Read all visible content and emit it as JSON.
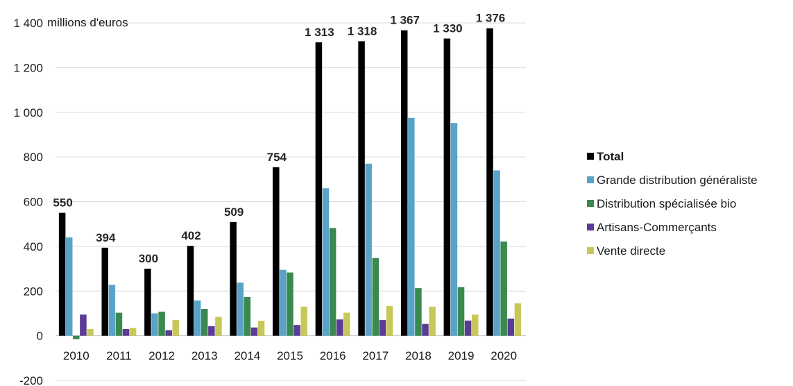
{
  "chart_data": {
    "type": "bar",
    "unit_label": "millions d'euros",
    "categories": [
      "2010",
      "2011",
      "2012",
      "2013",
      "2014",
      "2015",
      "2016",
      "2017",
      "2018",
      "2019",
      "2020"
    ],
    "series": [
      {
        "name": "Total",
        "color": "#000000",
        "values": [
          550,
          394,
          300,
          402,
          509,
          754,
          1313,
          1318,
          1367,
          1330,
          1376
        ]
      },
      {
        "name": "Grande distribution généraliste",
        "color": "#5aa3c8",
        "values": [
          440,
          228,
          100,
          158,
          238,
          295,
          660,
          770,
          975,
          952,
          740
        ]
      },
      {
        "name": "Distribution spécialisée bio",
        "color": "#3a8a50",
        "values": [
          -15,
          103,
          108,
          120,
          173,
          283,
          482,
          348,
          213,
          218,
          422
        ]
      },
      {
        "name": "Artisans-Commerçants",
        "color": "#5b3b96",
        "values": [
          95,
          30,
          25,
          43,
          37,
          48,
          73,
          70,
          53,
          68,
          77
        ]
      },
      {
        "name": "Vente directe",
        "color": "#c8c85a",
        "values": [
          30,
          35,
          70,
          85,
          67,
          130,
          103,
          133,
          130,
          95,
          145
        ]
      }
    ],
    "data_labels": [
      "550",
      "394",
      "300",
      "402",
      "509",
      "754",
      "1 313",
      "1 318",
      "1 367",
      "1 330",
      "1 376"
    ],
    "ytick_labels": [
      "-200",
      "0",
      "200",
      "400",
      "600",
      "800",
      "1 000",
      "1 200",
      "1 400"
    ],
    "ylim": [
      -200,
      1400
    ],
    "grid": true,
    "legend_position": "right"
  }
}
